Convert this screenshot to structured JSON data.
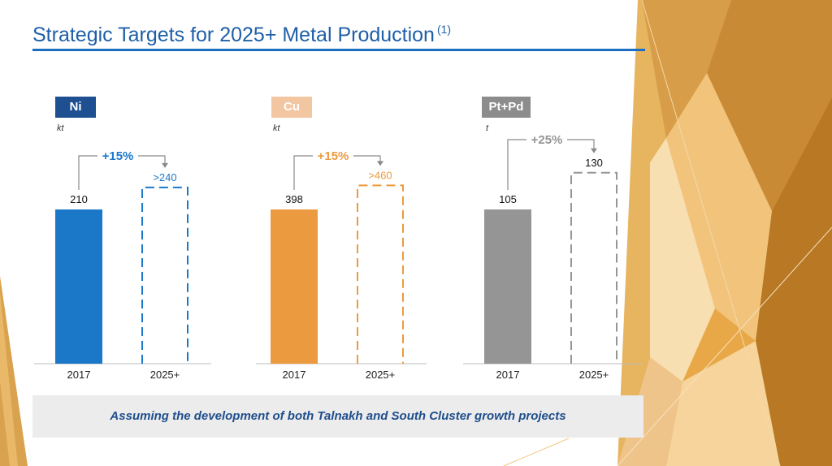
{
  "title": "Strategic Targets for 2025+ Metal Production",
  "title_footnote": "(1)",
  "footer": "Assuming the development of both Talnakh and South Cluster growth projects",
  "colors": {
    "title": "#1f5fa8",
    "accent_rule": "#1b6ec2",
    "ni": "#1b78c8",
    "cu": "#ec9a3f",
    "cu_badge": "#f3c6a2",
    "ptpd": "#959595",
    "ptpd_badge": "#8c8c8c",
    "ni_badge": "#1d4f91"
  },
  "chart_data": [
    {
      "type": "bar",
      "metal": "Ni",
      "unit": "kt",
      "categories": [
        "2017",
        "2025+"
      ],
      "values": [
        210,
        240
      ],
      "value_labels": [
        "210",
        ">240"
      ],
      "growth_label": "+15%",
      "bar_styles": [
        "solid",
        "dashed"
      ]
    },
    {
      "type": "bar",
      "metal": "Cu",
      "unit": "kt",
      "categories": [
        "2017",
        "2025+"
      ],
      "values": [
        398,
        460
      ],
      "value_labels": [
        "398",
        ">460"
      ],
      "growth_label": "+15%",
      "bar_styles": [
        "solid",
        "dashed"
      ]
    },
    {
      "type": "bar",
      "metal": "Pt+Pd",
      "unit": "t",
      "categories": [
        "2017",
        "2025+"
      ],
      "values": [
        105,
        130
      ],
      "value_labels": [
        "105",
        "130"
      ],
      "growth_label": "+25%",
      "bar_styles": [
        "solid",
        "dashed"
      ]
    }
  ]
}
